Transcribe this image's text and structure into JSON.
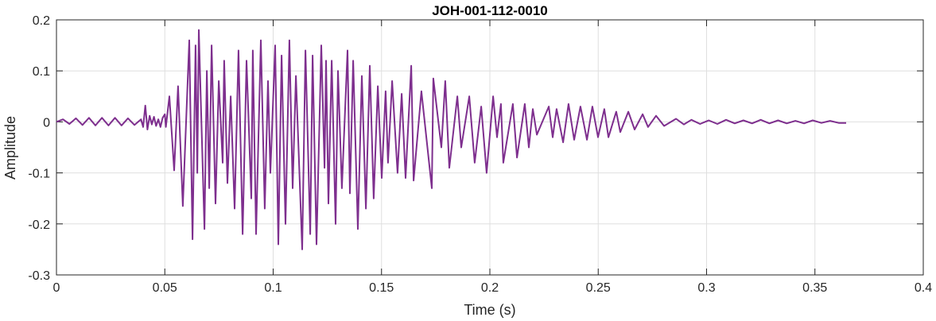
{
  "chart_data": {
    "type": "line",
    "title": "JOH-001-112-0010",
    "xlabel": "Time (s)",
    "ylabel": "Amplitude",
    "xlim": [
      0,
      0.4
    ],
    "ylim": [
      -0.3,
      0.2
    ],
    "xticks": [
      0,
      0.05,
      0.1,
      0.15,
      0.2,
      0.25,
      0.3,
      0.35,
      0.4
    ],
    "xtick_labels": [
      "0",
      "0.05",
      "0.1",
      "0.15",
      "0.2",
      "0.25",
      "0.3",
      "0.35",
      "0.4"
    ],
    "yticks": [
      0.2,
      0.1,
      0,
      -0.1,
      -0.2,
      -0.3
    ],
    "ytick_labels": [
      "0.2",
      "0.1",
      "0",
      "-0.1",
      "-0.2",
      "-0.3"
    ],
    "grid": true,
    "line_color": "#7E2F8E",
    "series": [
      {
        "x": [
          0,
          0.003,
          0.006,
          0.009,
          0.012,
          0.015,
          0.018,
          0.021,
          0.024,
          0.027,
          0.03,
          0.033,
          0.036,
          0.039,
          0.04,
          0.041,
          0.042,
          0.043,
          0.044,
          0.045,
          0.046,
          0.047,
          0.048,
          0.049,
          0.05,
          0.0505,
          0.0521,
          0.0543,
          0.0561,
          0.0583,
          0.0613,
          0.0628,
          0.0642,
          0.065,
          0.0657,
          0.0683,
          0.0694,
          0.0705,
          0.0716,
          0.0734,
          0.0749,
          0.0767,
          0.0774,
          0.0789,
          0.0804,
          0.0822,
          0.084,
          0.0859,
          0.0877,
          0.0899,
          0.0906,
          0.0921,
          0.0943,
          0.0961,
          0.0976,
          0.0987,
          0.1009,
          0.1024,
          0.1039,
          0.1057,
          0.1075,
          0.109,
          0.1105,
          0.1134,
          0.1149,
          0.1171,
          0.1182,
          0.12,
          0.1222,
          0.1237,
          0.1244,
          0.1255,
          0.127,
          0.1288,
          0.1299,
          0.1317,
          0.1343,
          0.1354,
          0.1369,
          0.1391,
          0.1409,
          0.1428,
          0.1446,
          0.1464,
          0.1483,
          0.1501,
          0.1519,
          0.153,
          0.1549,
          0.1574,
          0.1593,
          0.1611,
          0.1637,
          0.1648,
          0.1684,
          0.1732,
          0.1739,
          0.1776,
          0.1794,
          0.1813,
          0.185,
          0.1868,
          0.1905,
          0.193,
          0.196,
          0.1985,
          0.2015,
          0.2033,
          0.2051,
          0.2062,
          0.2106,
          0.2125,
          0.2161,
          0.218,
          0.2198,
          0.2217,
          0.2272,
          0.229,
          0.2308,
          0.2338,
          0.2363,
          0.2389,
          0.2418,
          0.2448,
          0.2473,
          0.2499,
          0.2528,
          0.2547,
          0.2583,
          0.2602,
          0.2639,
          0.2668,
          0.2705,
          0.273,
          0.2767,
          0.2804,
          0.2859,
          0.2895,
          0.293,
          0.297,
          0.301,
          0.305,
          0.309,
          0.313,
          0.317,
          0.321,
          0.325,
          0.329,
          0.333,
          0.337,
          0.341,
          0.345,
          0.349,
          0.353,
          0.357,
          0.361,
          0.3644
        ],
        "y": [
          0,
          0.005,
          -0.004,
          0.007,
          -0.006,
          0.008,
          -0.007,
          0.008,
          -0.007,
          0.008,
          -0.007,
          0.007,
          -0.006,
          0.005,
          -0.01,
          0.032,
          -0.015,
          0.012,
          -0.005,
          0.01,
          -0.008,
          0.005,
          -0.01,
          0.008,
          0.015,
          -0.01,
          0.05,
          -0.095,
          0.07,
          -0.165,
          0.16,
          -0.23,
          0.15,
          -0.1,
          0.18,
          -0.21,
          0.1,
          -0.13,
          0.15,
          -0.16,
          0.08,
          -0.08,
          0.12,
          -0.12,
          0.05,
          -0.17,
          0.14,
          -0.22,
          0.12,
          -0.15,
          0.14,
          -0.22,
          0.16,
          -0.17,
          0.08,
          -0.1,
          0.15,
          -0.24,
          0.13,
          -0.2,
          0.16,
          -0.13,
          0.09,
          -0.25,
          0.14,
          -0.22,
          0.13,
          -0.24,
          0.15,
          -0.09,
          0.12,
          -0.16,
          0.12,
          -0.2,
          0.1,
          -0.13,
          0.14,
          -0.14,
          0.12,
          -0.21,
          0.09,
          -0.17,
          0.11,
          -0.15,
          0.07,
          -0.11,
          0.06,
          -0.08,
          0.08,
          -0.1,
          0.055,
          -0.11,
          0.11,
          -0.115,
          0.06,
          -0.13,
          0.085,
          -0.05,
          0.08,
          -0.09,
          0.05,
          -0.05,
          0.05,
          -0.08,
          0.03,
          -0.1,
          0.05,
          -0.03,
          0.035,
          -0.08,
          0.035,
          -0.07,
          0.035,
          -0.05,
          0.025,
          -0.025,
          0.03,
          -0.03,
          0.025,
          -0.04,
          0.035,
          -0.035,
          0.03,
          -0.035,
          0.03,
          -0.03,
          0.025,
          -0.03,
          0.02,
          -0.02,
          0.02,
          -0.015,
          0.015,
          -0.01,
          0.012,
          -0.008,
          0.006,
          -0.005,
          0.004,
          -0.004,
          0.003,
          -0.004,
          0.004,
          -0.003,
          0.003,
          -0.003,
          0.004,
          -0.003,
          0.003,
          -0.003,
          0.002,
          -0.003,
          0.003,
          -0.002,
          0.002,
          -0.002,
          -0.002
        ]
      }
    ]
  }
}
